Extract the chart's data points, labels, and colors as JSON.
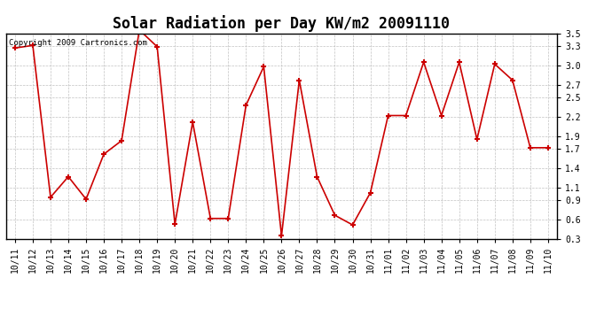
{
  "title": "Solar Radiation per Day KW/m2 20091110",
  "copyright_text": "Copyright 2009 Cartronics.com",
  "x_labels": [
    "10/11",
    "10/12",
    "10/13",
    "10/14",
    "10/15",
    "10/16",
    "10/17",
    "10/18",
    "10/19",
    "10/20",
    "10/21",
    "10/22",
    "10/23",
    "10/24",
    "10/25",
    "10/26",
    "10/27",
    "10/28",
    "10/29",
    "10/30",
    "10/31",
    "11/01",
    "11/02",
    "11/03",
    "11/04",
    "11/05",
    "11/06",
    "11/07",
    "11/08",
    "11/09",
    "11/10"
  ],
  "y_values": [
    3.27,
    3.31,
    0.95,
    1.27,
    0.92,
    1.62,
    1.83,
    3.55,
    3.29,
    0.53,
    2.12,
    0.62,
    0.62,
    2.38,
    2.98,
    0.35,
    2.77,
    1.27,
    0.67,
    0.52,
    1.02,
    2.22,
    2.22,
    3.05,
    2.22,
    3.05,
    1.85,
    3.02,
    2.77,
    1.72,
    1.72
  ],
  "line_color": "#cc0000",
  "marker": "+",
  "marker_size": 5,
  "marker_edge_width": 1.5,
  "bg_color": "#ffffff",
  "plot_bg_color": "#ffffff",
  "grid_color": "#bbbbbb",
  "ylim": [
    0.3,
    3.5
  ],
  "yticks": [
    0.3,
    0.6,
    0.9,
    1.1,
    1.4,
    1.7,
    1.9,
    2.2,
    2.5,
    2.7,
    3.0,
    3.3,
    3.5
  ],
  "title_fontsize": 12,
  "tick_fontsize": 7,
  "copyright_fontsize": 6.5,
  "linewidth": 1.2
}
